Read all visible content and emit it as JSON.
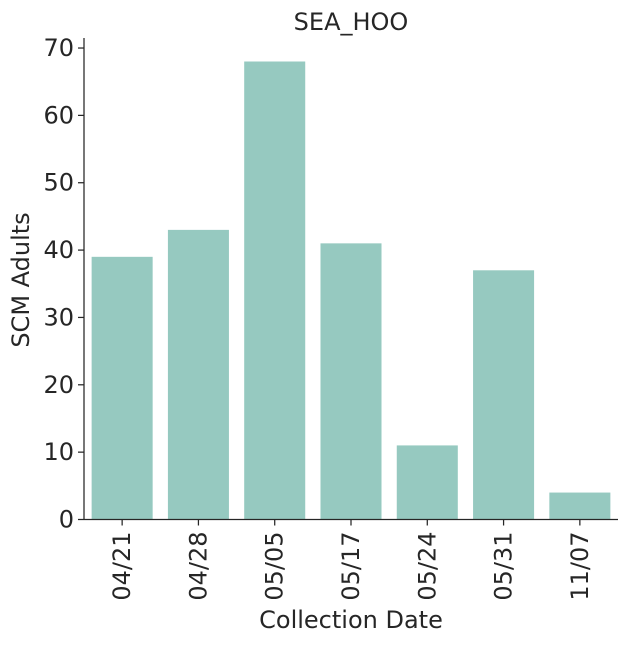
{
  "chart_data": {
    "type": "bar",
    "title": "SEA_HOO",
    "xlabel": "Collection Date",
    "ylabel": "SCM Adults",
    "categories": [
      "04/21",
      "04/28",
      "05/05",
      "05/17",
      "05/24",
      "05/31",
      "11/07"
    ],
    "values": [
      39,
      43,
      68,
      41,
      11,
      37,
      4
    ],
    "ylim": [
      0,
      70
    ],
    "yticks": [
      0,
      10,
      20,
      30,
      40,
      50,
      60,
      70
    ],
    "bar_color": "#96c9c0",
    "grid": false,
    "legend": "none"
  }
}
